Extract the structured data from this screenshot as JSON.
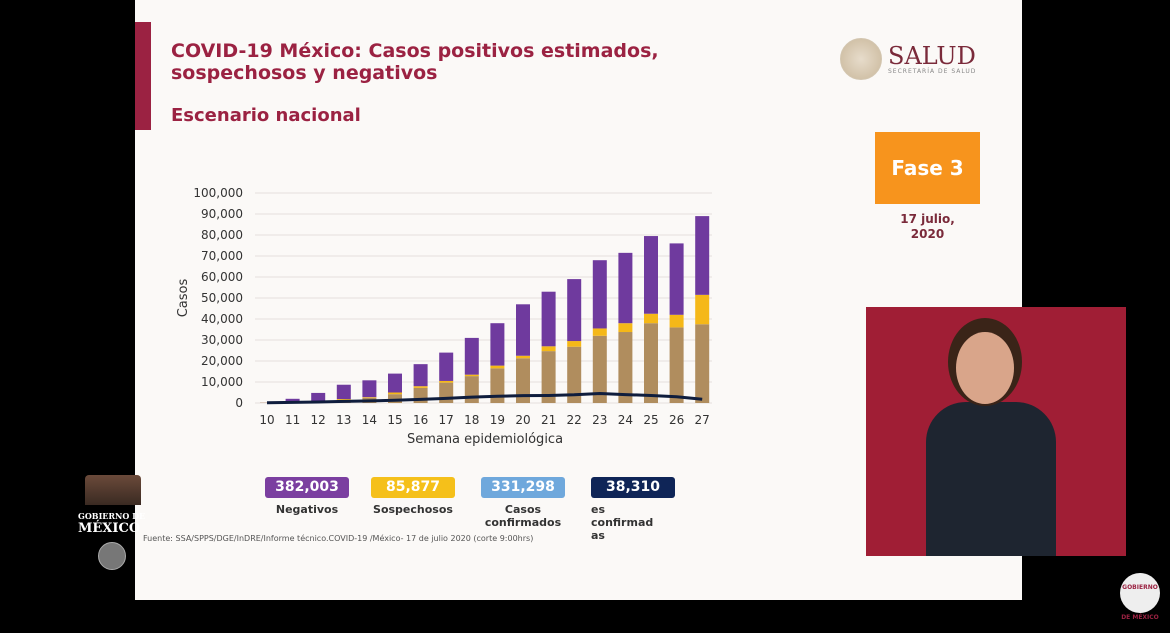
{
  "header": {
    "title": "COVID-19 México: Casos positivos estimados, sospechosos y negativos",
    "subtitle": "Escenario nacional"
  },
  "logo": {
    "name": "SALUD",
    "sub": "SECRETARÍA DE SALUD"
  },
  "phase": {
    "label": "Fase 3",
    "date_line1": "17 julio,",
    "date_line2": "2020"
  },
  "legend": [
    {
      "value": "382,003",
      "label": "Negativos",
      "color": "#7b3fa0"
    },
    {
      "value": "85,877",
      "label": "Sospechosos",
      "color": "#f5c01a"
    },
    {
      "value": "331,298",
      "label": "Casos confirmados",
      "color": "#6fa8dc"
    },
    {
      "value": "38,310",
      "label": "es confirmad as",
      "color": "#0f2557"
    }
  ],
  "source": "Fuente: SSA/SPPS/DGE/InDRE/Informe técnico.COVID-19 /México- 17 de julio 2020 (corte 9:00hrs)",
  "gobierno": {
    "line1": "GOBIERNO DE",
    "line2": "MÉXICO"
  },
  "corner_logo": "GOBIERNO DE MÉXICO",
  "chart_data": {
    "type": "bar",
    "stacked": true,
    "xlabel": "Semana epidemiológica",
    "ylabel": "Casos",
    "ylim": [
      0,
      100000
    ],
    "yticks": [
      "0",
      "10,000",
      "20,000",
      "30,000",
      "40,000",
      "50,000",
      "60,000",
      "70,000",
      "80,000",
      "90,000",
      "100,000"
    ],
    "categories": [
      "10",
      "11",
      "12",
      "13",
      "14",
      "15",
      "16",
      "17",
      "18",
      "19",
      "20",
      "21",
      "22",
      "23",
      "24",
      "25",
      "26",
      "27"
    ],
    "series": [
      {
        "name": "Confirmados",
        "color": "#b08d5e",
        "values": [
          100,
          300,
          700,
          1500,
          2500,
          4200,
          7200,
          9700,
          12800,
          16500,
          21300,
          24700,
          26800,
          32000,
          33800,
          38000,
          36000,
          37500
        ]
      },
      {
        "name": "Sospechosos",
        "color": "#f5b818",
        "values": [
          50,
          100,
          200,
          400,
          300,
          800,
          800,
          800,
          700,
          1300,
          1200,
          2300,
          2700,
          3500,
          4200,
          4500,
          6000,
          14000
        ]
      },
      {
        "name": "Negativos",
        "color": "#6f3a9e",
        "values": [
          50,
          1600,
          3900,
          6800,
          8000,
          9000,
          10500,
          13500,
          17500,
          20200,
          24500,
          26000,
          29500,
          32500,
          33500,
          37000,
          34000,
          37500
        ]
      },
      {
        "name": "Defunciones",
        "type": "line",
        "color": "#0f1d3d",
        "values": [
          100,
          300,
          500,
          800,
          1000,
          1300,
          1700,
          2200,
          2800,
          3200,
          3500,
          3600,
          3900,
          4500,
          4000,
          3600,
          3000,
          1800
        ]
      }
    ]
  }
}
